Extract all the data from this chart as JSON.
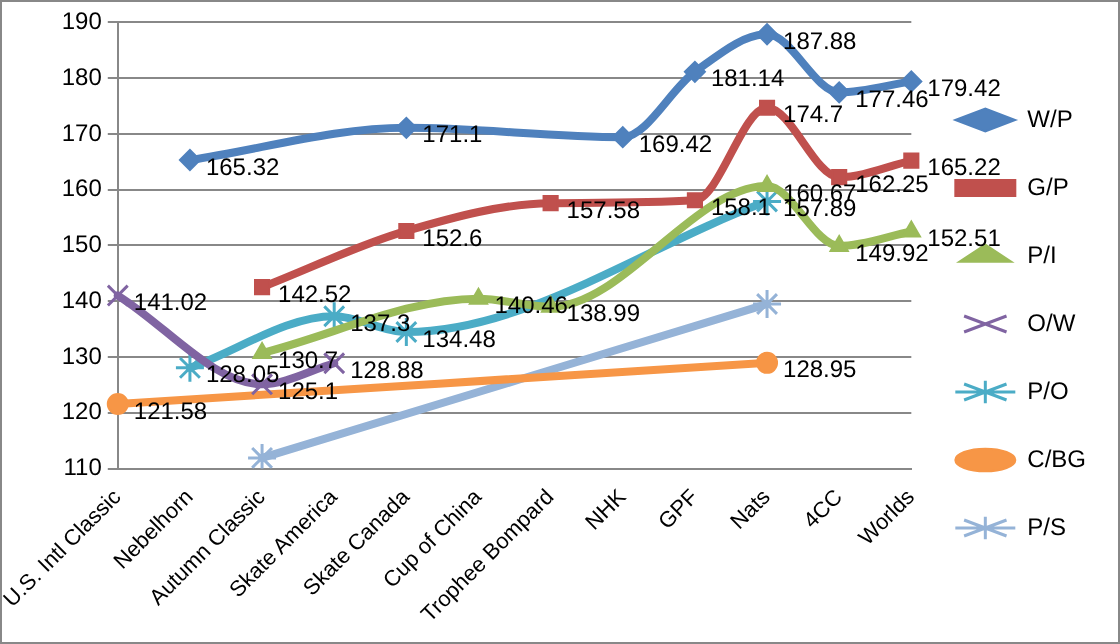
{
  "chart_data": {
    "type": "line",
    "categories": [
      "U.S. Intl Classic",
      "Nebelhorn",
      "Autumn Classic",
      "Skate America",
      "Skate Canada",
      "Cup of China",
      "Trophee Bompard",
      "NHK",
      "GPF",
      "Nats",
      "4CC",
      "Worlds"
    ],
    "series": [
      {
        "name": "W/P",
        "color": "#4f81bd",
        "marker": "diamond",
        "values": [
          null,
          165.32,
          null,
          null,
          171.1,
          null,
          null,
          169.42,
          181.14,
          187.88,
          177.46,
          179.42
        ],
        "value_labels": [
          null,
          "165.32",
          null,
          null,
          "171.1",
          null,
          null,
          "169.42",
          "181.14",
          "187.88",
          "177.46",
          "179.42"
        ]
      },
      {
        "name": "G/P",
        "color": "#c0504d",
        "marker": "square",
        "values": [
          null,
          null,
          142.52,
          null,
          152.6,
          null,
          157.58,
          null,
          158.1,
          174.7,
          162.25,
          165.22
        ],
        "value_labels": [
          null,
          null,
          "142.52",
          null,
          "152.6",
          null,
          "157.58",
          null,
          "158.1",
          "174.7",
          "162.25",
          "165.22"
        ]
      },
      {
        "name": "P/I",
        "color": "#9bbb59",
        "marker": "triangle",
        "values": [
          null,
          null,
          130.7,
          null,
          null,
          140.46,
          138.99,
          null,
          null,
          160.67,
          149.92,
          152.51
        ],
        "value_labels": [
          null,
          null,
          "130.7",
          null,
          null,
          "140.46",
          "138.99",
          null,
          null,
          "160.67",
          "149.92",
          "152.51"
        ]
      },
      {
        "name": "O/W",
        "color": "#8064a2",
        "marker": "cross",
        "values": [
          141.02,
          null,
          125.1,
          128.88,
          null,
          null,
          null,
          null,
          null,
          null,
          null,
          null
        ],
        "value_labels": [
          "141.02",
          null,
          "125.1",
          "128.88",
          null,
          null,
          null,
          null,
          null,
          null,
          null,
          null
        ]
      },
      {
        "name": "P/O",
        "color": "#4bacc6",
        "marker": "cross",
        "values": [
          null,
          128.05,
          null,
          137.3,
          134.48,
          null,
          null,
          null,
          null,
          157.89,
          null,
          null
        ],
        "value_labels": [
          null,
          "128.05",
          null,
          "137.3",
          "134.48",
          null,
          null,
          null,
          null,
          "157.89",
          null,
          null
        ]
      },
      {
        "name": "C/BG",
        "color": "#f79646",
        "marker": "circle",
        "values": [
          121.58,
          null,
          null,
          null,
          null,
          null,
          null,
          null,
          null,
          128.95,
          null,
          null
        ],
        "value_labels": [
          "121.58",
          null,
          null,
          null,
          null,
          null,
          null,
          null,
          null,
          "128.95",
          null,
          null
        ]
      },
      {
        "name": "P/S",
        "color": "#95b3d7",
        "marker": "cross",
        "values": [
          null,
          null,
          111.9,
          null,
          null,
          null,
          null,
          null,
          null,
          139.5,
          null,
          null
        ]
      }
    ],
    "ylim": [
      110,
      190
    ],
    "yticks": [
      110,
      120,
      130,
      140,
      150,
      160,
      170,
      180,
      190
    ],
    "grid": "y",
    "legend": "right"
  }
}
